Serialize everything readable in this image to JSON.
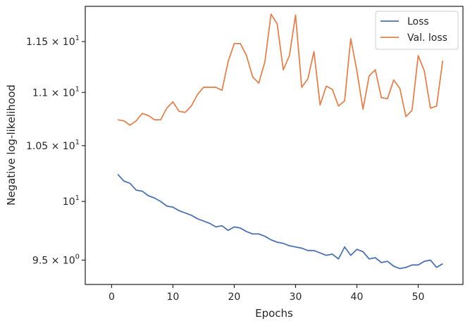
{
  "chart_data": {
    "type": "line",
    "xlabel": "Epochs",
    "ylabel": "Negative log-likelihood",
    "xlim": [
      -4.3,
      57.3
    ],
    "ylim": [
      9.3,
      11.86
    ],
    "y_scale": "log",
    "grid": false,
    "legend_position": "top-right",
    "x_ticks": [
      0,
      10,
      20,
      30,
      40,
      50
    ],
    "y_ticks": [
      {
        "value": 9.5,
        "base": "9.5",
        "exp": "0"
      },
      {
        "value": 10,
        "base": "10",
        "exp": "1"
      },
      {
        "value": 10.5,
        "base": "1.05",
        "exp": "1"
      },
      {
        "value": 11,
        "base": "1.1",
        "exp": "1"
      },
      {
        "value": 11.5,
        "base": "1.15",
        "exp": "1"
      }
    ],
    "series": [
      {
        "name": "Loss",
        "color": "#4c72b0",
        "x": [
          1,
          2,
          3,
          4,
          5,
          6,
          7,
          8,
          9,
          10,
          11,
          12,
          13,
          14,
          15,
          16,
          17,
          18,
          19,
          20,
          21,
          22,
          23,
          24,
          25,
          26,
          27,
          28,
          29,
          30,
          31,
          32,
          33,
          34,
          35,
          36,
          37,
          38,
          39,
          40,
          41,
          42,
          43,
          44,
          45,
          46,
          47,
          48,
          49,
          50,
          51,
          52,
          53,
          54
        ],
        "values": [
          10.24,
          10.18,
          10.16,
          10.1,
          10.09,
          10.05,
          10.03,
          10.0,
          9.96,
          9.95,
          9.92,
          9.9,
          9.88,
          9.85,
          9.83,
          9.81,
          9.78,
          9.79,
          9.75,
          9.78,
          9.77,
          9.74,
          9.72,
          9.72,
          9.7,
          9.67,
          9.65,
          9.64,
          9.62,
          9.61,
          9.6,
          9.58,
          9.58,
          9.56,
          9.54,
          9.55,
          9.51,
          9.61,
          9.54,
          9.59,
          9.57,
          9.51,
          9.52,
          9.48,
          9.49,
          9.45,
          9.43,
          9.44,
          9.46,
          9.46,
          9.49,
          9.5,
          9.44,
          9.47
        ]
      },
      {
        "name": "Val. loss",
        "color": "#dd8452",
        "x": [
          1,
          2,
          3,
          4,
          5,
          6,
          7,
          8,
          9,
          10,
          11,
          12,
          13,
          14,
          15,
          16,
          17,
          18,
          19,
          20,
          21,
          22,
          23,
          24,
          25,
          26,
          27,
          28,
          29,
          30,
          31,
          32,
          33,
          34,
          35,
          36,
          37,
          38,
          39,
          40,
          41,
          42,
          43,
          44,
          45,
          46,
          47,
          48,
          49,
          50,
          51,
          52,
          53,
          54
        ],
        "values": [
          10.74,
          10.73,
          10.69,
          10.73,
          10.8,
          10.78,
          10.74,
          10.74,
          10.85,
          10.91,
          10.82,
          10.81,
          10.87,
          10.98,
          11.05,
          11.05,
          11.05,
          11.02,
          11.3,
          11.48,
          11.48,
          11.36,
          11.15,
          11.09,
          11.3,
          11.78,
          11.68,
          11.22,
          11.36,
          11.77,
          11.05,
          11.13,
          11.4,
          10.88,
          11.06,
          11.03,
          10.87,
          10.92,
          11.53,
          11.21,
          10.84,
          11.16,
          11.22,
          10.95,
          10.94,
          11.12,
          11.04,
          10.77,
          10.83,
          11.36,
          11.21,
          10.85,
          10.87,
          11.31
        ]
      }
    ]
  }
}
